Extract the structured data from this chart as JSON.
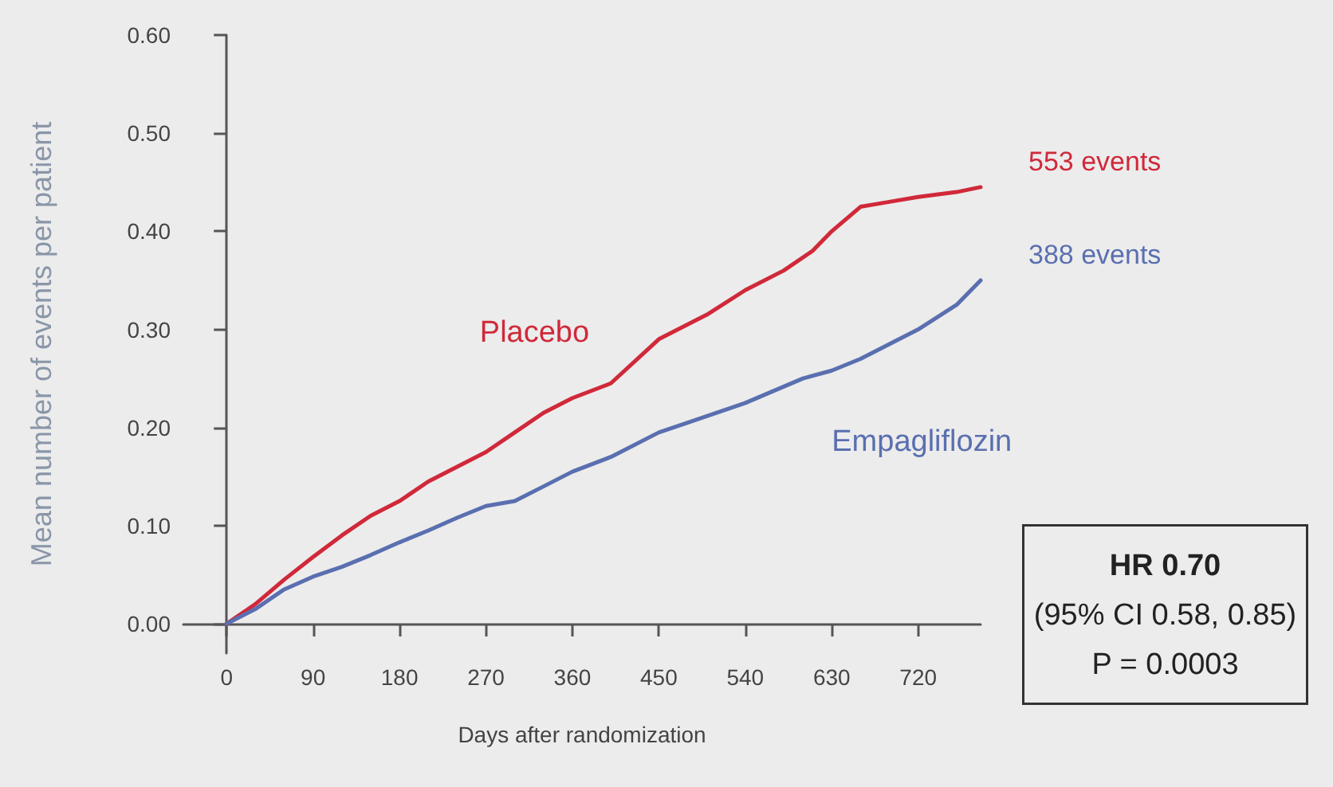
{
  "chart_data": {
    "type": "line",
    "xlabel": "Days after randomization",
    "ylabel": "Mean number of events per patient",
    "xlim": [
      -45,
      785
    ],
    "xticks": [
      0,
      90,
      180,
      270,
      360,
      450,
      540,
      630,
      720
    ],
    "ylim": [
      -0.03,
      0.6
    ],
    "yticks": [
      {
        "value": 0,
        "label": "0.00"
      },
      {
        "value": 0.1,
        "label": "0.10"
      },
      {
        "value": 0.2,
        "label": "0.20"
      },
      {
        "value": 0.3,
        "label": "0.30"
      },
      {
        "value": 0.4,
        "label": "0.40"
      },
      {
        "value": 0.5,
        "label": "0.50"
      },
      {
        "value": 0.6,
        "label": "0.60"
      }
    ],
    "grid": false,
    "legend": false,
    "marker": "none",
    "line_style": "solid",
    "series": [
      {
        "name": "Placebo",
        "color": "#d0293a",
        "x": [
          0,
          30,
          60,
          90,
          120,
          150,
          180,
          210,
          240,
          270,
          300,
          330,
          360,
          400,
          450,
          500,
          540,
          580,
          610,
          630,
          660,
          690,
          720,
          760,
          785
        ],
        "values": [
          0,
          0.02,
          0.045,
          0.068,
          0.09,
          0.11,
          0.125,
          0.145,
          0.16,
          0.175,
          0.195,
          0.215,
          0.23,
          0.245,
          0.29,
          0.315,
          0.34,
          0.36,
          0.38,
          0.4,
          0.425,
          0.43,
          0.435,
          0.44,
          0.445
        ]
      },
      {
        "name": "Empagliflozin",
        "color": "#5a6fb0",
        "x": [
          0,
          30,
          60,
          90,
          120,
          150,
          180,
          210,
          240,
          270,
          300,
          330,
          360,
          400,
          450,
          480,
          540,
          600,
          630,
          660,
          690,
          720,
          760,
          785
        ],
        "values": [
          0,
          0.015,
          0.035,
          0.048,
          0.058,
          0.07,
          0.083,
          0.095,
          0.108,
          0.12,
          0.125,
          0.14,
          0.155,
          0.17,
          0.195,
          0.205,
          0.225,
          0.25,
          0.258,
          0.27,
          0.285,
          0.3,
          0.325,
          0.35
        ]
      }
    ],
    "annotations": [
      {
        "text": "553 events",
        "x": 785,
        "y": 0.445
      },
      {
        "text": "388 events",
        "x": 785,
        "y": 0.35
      },
      "HR 0.70\n(95% CI 0.58, 0.85)\nP = 0.0003"
    ]
  }
}
